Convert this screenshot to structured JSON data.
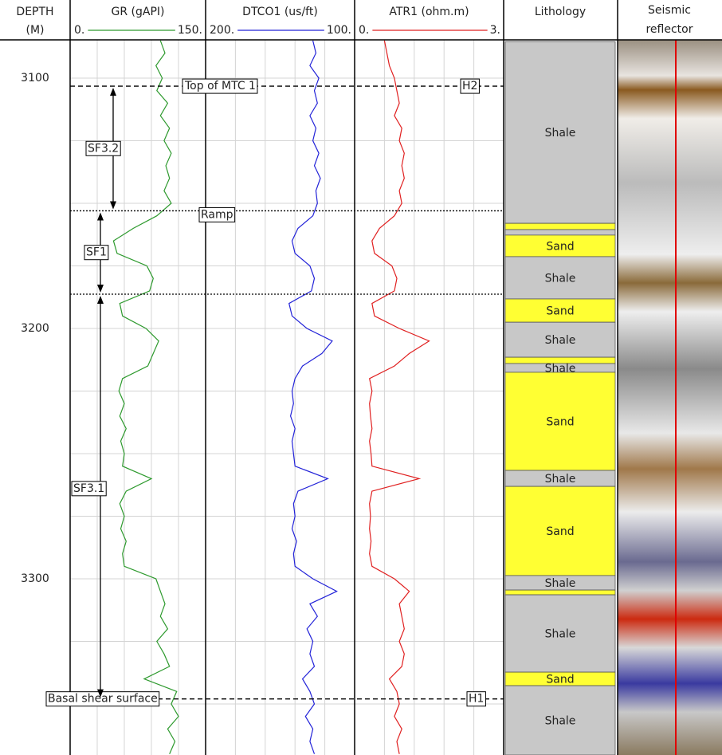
{
  "chart_data": {
    "type": "well-log",
    "depth_title": "DEPTH",
    "depth_unit": "(M)",
    "ylim": [
      3084.7,
      3370.4
    ],
    "yticks": [
      3100,
      3200,
      3300
    ],
    "ygrid": [
      3100,
      3125,
      3150,
      3175,
      3200,
      3225,
      3250,
      3275,
      3300,
      3325,
      3350
    ],
    "depth": [
      3085,
      3090,
      3095,
      3100,
      3105,
      3110,
      3115,
      3120,
      3125,
      3130,
      3135,
      3140,
      3145,
      3150,
      3155,
      3160,
      3165,
      3170,
      3175,
      3180,
      3185,
      3190,
      3195,
      3200,
      3205,
      3210,
      3215,
      3220,
      3225,
      3230,
      3235,
      3240,
      3245,
      3250,
      3255,
      3260,
      3265,
      3270,
      3275,
      3280,
      3285,
      3290,
      3295,
      3300,
      3305,
      3310,
      3315,
      3320,
      3325,
      3330,
      3335,
      3340,
      3345,
      3350,
      3355,
      3360,
      3365,
      3370
    ],
    "tracks": [
      {
        "name": "GR (gAPI)",
        "color": "#2e9a2e",
        "xlim": [
          0,
          150
        ],
        "xticks": [
          {
            "value": 0,
            "label": "0."
          },
          {
            "value": 150,
            "label": "150."
          }
        ],
        "xgrid": [
          0,
          30,
          60,
          90,
          120,
          150
        ],
        "values": [
          100,
          105,
          95,
          102,
          96,
          108,
          100,
          110,
          104,
          112,
          106,
          110,
          104,
          112,
          96,
          70,
          48,
          52,
          85,
          92,
          88,
          55,
          58,
          84,
          98,
          92,
          86,
          58,
          54,
          60,
          55,
          62,
          56,
          60,
          58,
          90,
          62,
          55,
          60,
          56,
          62,
          58,
          60,
          95,
          100,
          105,
          100,
          108,
          96,
          104,
          110,
          82,
          118,
          112,
          120,
          108,
          116,
          110
        ]
      },
      {
        "name": "DTCO1 (us/ft)",
        "color": "#2323d8",
        "xlim": [
          200,
          100
        ],
        "xticks": [
          {
            "value": 200,
            "label": "200."
          },
          {
            "value": 100,
            "label": "100."
          }
        ],
        "xgrid": [
          200,
          180,
          160,
          140,
          120,
          100
        ],
        "values": [
          128,
          126,
          130,
          124,
          127,
          125,
          130,
          126,
          128,
          124,
          127,
          123,
          126,
          125,
          128,
          138,
          142,
          140,
          130,
          127,
          129,
          144,
          142,
          132,
          115,
          122,
          135,
          140,
          142,
          141,
          143,
          140,
          142,
          141,
          140,
          118,
          138,
          141,
          140,
          142,
          139,
          141,
          140,
          128,
          112,
          130,
          125,
          132,
          128,
          130,
          127,
          135,
          130,
          127,
          133,
          128,
          130,
          127
        ]
      },
      {
        "name": "ATR1 (ohm.m)",
        "color": "#e02020",
        "xlim": [
          0,
          3
        ],
        "xticks": [
          {
            "value": 0,
            "label": "0."
          },
          {
            "value": 3,
            "label": "3."
          }
        ],
        "xgrid": [
          0,
          0.6,
          1.2,
          1.8,
          2.4,
          3
        ],
        "values": [
          0.6,
          0.65,
          0.7,
          0.8,
          0.85,
          0.9,
          0.8,
          0.95,
          0.9,
          1.0,
          0.95,
          1.0,
          0.9,
          0.95,
          0.8,
          0.5,
          0.35,
          0.4,
          0.75,
          0.85,
          0.8,
          0.35,
          0.4,
          0.9,
          1.5,
          1.1,
          0.8,
          0.3,
          0.35,
          0.3,
          0.32,
          0.35,
          0.3,
          0.33,
          0.35,
          1.3,
          0.35,
          0.3,
          0.32,
          0.3,
          0.33,
          0.3,
          0.35,
          0.8,
          1.1,
          0.9,
          0.95,
          1.0,
          0.9,
          1.0,
          0.95,
          0.7,
          0.85,
          0.9,
          0.8,
          0.95,
          0.85,
          0.9
        ]
      }
    ],
    "lithology": {
      "title": "Lithology",
      "intervals": [
        {
          "label": "Shale",
          "top": 3085.4,
          "bottom": 3158.0,
          "color": "#c8c8c8"
        },
        {
          "label": null,
          "top": 3158.0,
          "bottom": 3160.5,
          "color": "#ffff33"
        },
        {
          "label": null,
          "top": 3160.5,
          "bottom": 3162.7,
          "color": "#c8c8c8"
        },
        {
          "label": "Sand",
          "top": 3162.7,
          "bottom": 3171.3,
          "color": "#ffff33"
        },
        {
          "label": "Shale",
          "top": 3171.3,
          "bottom": 3188.2,
          "color": "#c8c8c8"
        },
        {
          "label": "Sand",
          "top": 3188.2,
          "bottom": 3197.5,
          "color": "#ffff33"
        },
        {
          "label": "Shale",
          "top": 3197.5,
          "bottom": 3211.5,
          "color": "#c8c8c8"
        },
        {
          "label": null,
          "top": 3211.5,
          "bottom": 3214.0,
          "color": "#ffff33"
        },
        {
          "label": "Shale",
          "top": 3214.0,
          "bottom": 3217.5,
          "color": "#c8c8c8"
        },
        {
          "label": "Sand",
          "top": 3217.5,
          "bottom": 3256.7,
          "color": "#ffff33"
        },
        {
          "label": "Shale",
          "top": 3256.7,
          "bottom": 3263.1,
          "color": "#c8c8c8"
        },
        {
          "label": "Sand",
          "top": 3263.1,
          "bottom": 3298.7,
          "color": "#ffff33"
        },
        {
          "label": "Shale",
          "top": 3298.7,
          "bottom": 3304.5,
          "color": "#c8c8c8"
        },
        {
          "label": null,
          "top": 3304.5,
          "bottom": 3306.4,
          "color": "#ffff33"
        },
        {
          "label": "Shale",
          "top": 3306.4,
          "bottom": 3337.3,
          "color": "#c8c8c8"
        },
        {
          "label": "Sand",
          "top": 3337.3,
          "bottom": 3342.7,
          "color": "#ffff33"
        },
        {
          "label": "Shale",
          "top": 3342.7,
          "bottom": 3370.4,
          "color": "#c8c8c8"
        }
      ]
    },
    "seismic": {
      "title_lines": [
        "Seismic",
        "reflector"
      ]
    },
    "horizons": [
      {
        "label": "Top of MTC 1",
        "right_label": "H2",
        "depth": 3103.2,
        "style": "dashed"
      },
      {
        "label": "Ramp",
        "depth": 3153.0,
        "style": "dotted"
      },
      {
        "depth": 3186.3,
        "style": "dotted"
      },
      {
        "label": "Basal shear surface",
        "right_label": "H1",
        "depth": 3348.0,
        "style": "dashed"
      }
    ],
    "intervals": [
      {
        "label": "SF3.2",
        "top": 3103.2,
        "bottom": 3153.0
      },
      {
        "label": "SF1",
        "top": 3153.0,
        "bottom": 3186.3
      },
      {
        "label": "SF3.1",
        "top": 3186.3,
        "bottom": 3348.0
      }
    ]
  }
}
